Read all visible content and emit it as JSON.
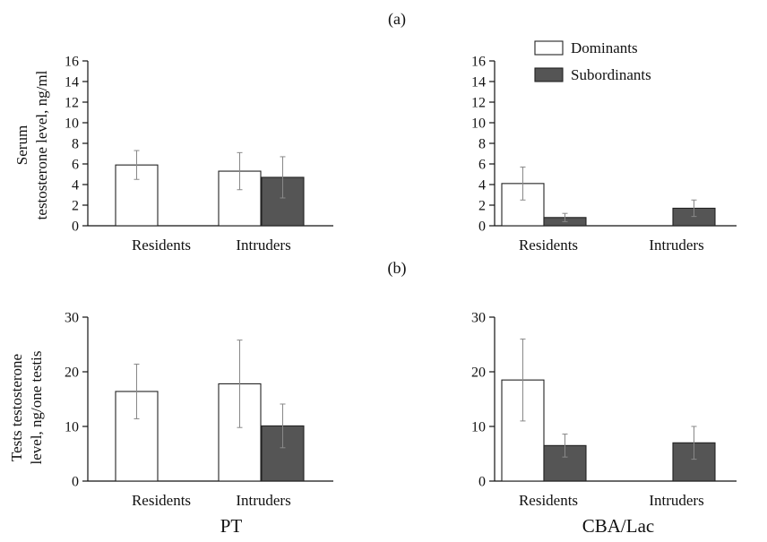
{
  "panel_labels": [
    "(a)",
    "(b)"
  ],
  "strain_labels": [
    "PT",
    "CBA/Lac"
  ],
  "legend": [
    "Dominants",
    "Subordinants"
  ],
  "colors": {
    "dominants": "#ffffff",
    "subordinants": "#555555",
    "outline": "#222222",
    "error": "#888888"
  },
  "ylabels": {
    "serum": [
      "Serum",
      "testosterone level, ng/ml"
    ],
    "testis": [
      "Tests testosterone",
      "level, ng/one testis"
    ]
  },
  "chart_data": [
    {
      "type": "bar",
      "row": "a",
      "strain": "PT",
      "categories": [
        "Residents",
        "Intruders"
      ],
      "ylim": [
        0,
        16
      ],
      "yticks": [
        0,
        2,
        4,
        6,
        8,
        10,
        12,
        14,
        16
      ],
      "series": [
        {
          "name": "Dominants",
          "values": [
            5.9,
            5.3
          ],
          "errors": [
            1.4,
            1.8
          ]
        },
        {
          "name": "Subordinants",
          "values": [
            null,
            4.7
          ],
          "errors": [
            null,
            2.0
          ]
        }
      ]
    },
    {
      "type": "bar",
      "row": "a",
      "strain": "CBA/Lac",
      "categories": [
        "Residents",
        "Intruders"
      ],
      "ylim": [
        0,
        16
      ],
      "yticks": [
        0,
        2,
        4,
        6,
        8,
        10,
        12,
        14,
        16
      ],
      "series": [
        {
          "name": "Dominants",
          "values": [
            4.1,
            null
          ],
          "errors": [
            1.6,
            null
          ]
        },
        {
          "name": "Subordinants",
          "values": [
            0.8,
            1.7
          ],
          "errors": [
            0.4,
            0.8
          ]
        }
      ]
    },
    {
      "type": "bar",
      "row": "b",
      "strain": "PT",
      "categories": [
        "Residents",
        "Intruders"
      ],
      "ylim": [
        0,
        30
      ],
      "yticks": [
        0,
        10,
        20,
        30
      ],
      "series": [
        {
          "name": "Dominants",
          "values": [
            16.4,
            17.8
          ],
          "errors": [
            5.0,
            8.0
          ]
        },
        {
          "name": "Subordinants",
          "values": [
            null,
            10.1
          ],
          "errors": [
            null,
            4.0
          ]
        }
      ]
    },
    {
      "type": "bar",
      "row": "b",
      "strain": "CBA/Lac",
      "categories": [
        "Residents",
        "Intruders"
      ],
      "ylim": [
        0,
        30
      ],
      "yticks": [
        0,
        10,
        20,
        30
      ],
      "series": [
        {
          "name": "Dominants",
          "values": [
            18.5,
            null
          ],
          "errors": [
            7.5,
            null
          ]
        },
        {
          "name": "Subordinants",
          "values": [
            6.5,
            7.0
          ],
          "errors": [
            2.1,
            3.0
          ]
        }
      ]
    }
  ]
}
